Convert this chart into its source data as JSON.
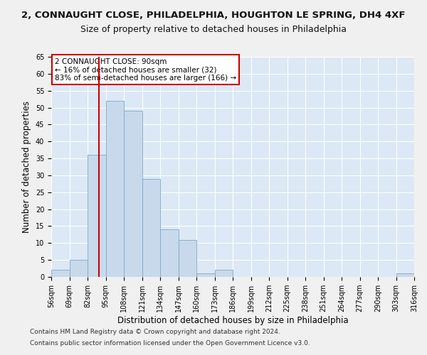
{
  "title1": "2, CONNAUGHT CLOSE, PHILADELPHIA, HOUGHTON LE SPRING, DH4 4XF",
  "title2": "Size of property relative to detached houses in Philadelphia",
  "xlabel": "Distribution of detached houses by size in Philadelphia",
  "ylabel": "Number of detached properties",
  "footer1": "Contains HM Land Registry data © Crown copyright and database right 2024.",
  "footer2": "Contains public sector information licensed under the Open Government Licence v3.0.",
  "annotation_line1": "2 CONNAUGHT CLOSE: 90sqm",
  "annotation_line2": "← 16% of detached houses are smaller (32)",
  "annotation_line3": "83% of semi-detached houses are larger (166) →",
  "bar_color": "#c9d9ec",
  "bar_edge_color": "#7aaac8",
  "vline_color": "#cc0000",
  "vline_x": 90,
  "bin_edges": [
    56,
    69,
    82,
    95,
    108,
    121,
    134,
    147,
    160,
    173,
    186,
    199,
    212,
    225,
    238,
    251,
    264,
    277,
    290,
    303,
    316
  ],
  "bar_heights": [
    2,
    5,
    36,
    52,
    49,
    29,
    14,
    11,
    1,
    2,
    0,
    0,
    0,
    0,
    0,
    0,
    0,
    0,
    0,
    1
  ],
  "ylim": [
    0,
    65
  ],
  "yticks": [
    0,
    5,
    10,
    15,
    20,
    25,
    30,
    35,
    40,
    45,
    50,
    55,
    60,
    65
  ],
  "xlim": [
    56,
    316
  ],
  "background_color": "#dce8f5",
  "fig_background": "#f0f0f0",
  "grid_color": "#ffffff",
  "title1_fontsize": 9.5,
  "title2_fontsize": 9,
  "axis_label_fontsize": 8.5,
  "tick_fontsize": 7,
  "annotation_fontsize": 7.5,
  "footer_fontsize": 6.5
}
